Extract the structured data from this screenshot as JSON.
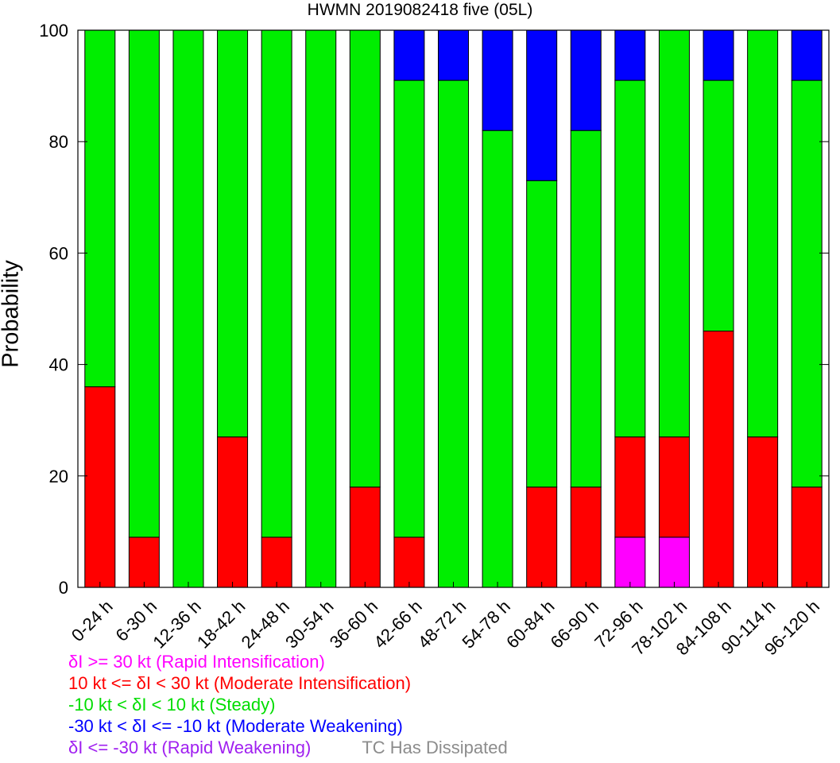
{
  "chart_data": {
    "type": "bar",
    "stacked": true,
    "title": "HWMN 2019082418 five (05L)",
    "ylabel": "Probability",
    "ylim": [
      0,
      100
    ],
    "yticks": [
      0,
      20,
      40,
      60,
      80,
      100
    ],
    "grid": false,
    "categories": [
      "0-24 h",
      "6-30 h",
      "12-36 h",
      "18-42 h",
      "24-48 h",
      "30-54 h",
      "36-60 h",
      "42-66 h",
      "48-72 h",
      "54-78 h",
      "60-84 h",
      "66-90 h",
      "72-96 h",
      "78-102 h",
      "84-108 h",
      "90-114 h",
      "96-120 h"
    ],
    "series": [
      {
        "name": "δI >= 30 kt (Rapid Intensification)",
        "color": "#ff00ff",
        "values": [
          0,
          0,
          0,
          0,
          0,
          0,
          0,
          0,
          0,
          0,
          0,
          0,
          9,
          9,
          0,
          0,
          0
        ]
      },
      {
        "name": "10 kt <= δI < 30 kt (Moderate Intensification)",
        "color": "#ff0000",
        "values": [
          36,
          9,
          0,
          27,
          9,
          0,
          18,
          9,
          0,
          0,
          18,
          18,
          18,
          18,
          46,
          27,
          18
        ]
      },
      {
        "name": "-10 kt < δI < 10 kt (Steady)",
        "color": "#00ee00",
        "values": [
          64,
          91,
          100,
          73,
          91,
          100,
          82,
          82,
          91,
          82,
          55,
          64,
          64,
          73,
          45,
          73,
          73
        ]
      },
      {
        "name": "-30 kt < δI <= -10 kt (Moderate Weakening)",
        "color": "#0000ff",
        "values": [
          0,
          0,
          0,
          0,
          0,
          0,
          0,
          9,
          9,
          18,
          27,
          18,
          9,
          0,
          9,
          0,
          9
        ]
      },
      {
        "name": "δI <= -30 kt (Rapid Weakening)",
        "color": "#a020f0",
        "values": [
          0,
          0,
          0,
          0,
          0,
          0,
          0,
          0,
          0,
          0,
          0,
          0,
          0,
          0,
          0,
          0,
          0
        ]
      }
    ],
    "legend_extra": {
      "label": "TC Has Dissipated",
      "color": "#8c8c8c"
    }
  },
  "legend": {
    "ri": "δI >= 30 kt (Rapid Intensification)",
    "mi": "10 kt <= δI < 30 kt (Moderate Intensification)",
    "st": "-10 kt < δI < 10 kt (Steady)",
    "mw": "-30 kt < δI <= -10 kt (Moderate Weakening)",
    "rw": "δI <= -30 kt (Rapid Weakening)",
    "dissipated": "TC Has Dissipated"
  }
}
